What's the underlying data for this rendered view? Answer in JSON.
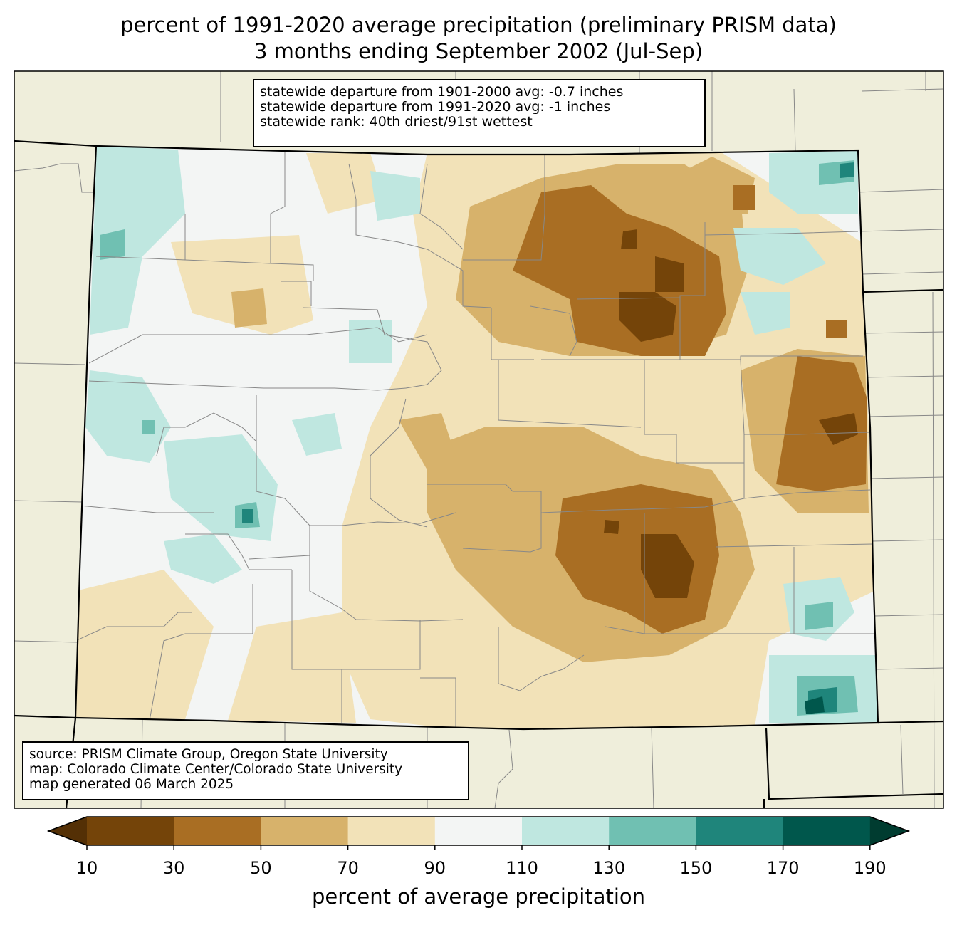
{
  "title": {
    "line1": "percent of 1991-2020 average precipitation (preliminary PRISM data)",
    "line2": "3 months ending September 2002 (Jul-Sep)"
  },
  "stats": {
    "line1": "statewide departure from 1901-2000 avg: -0.7 inches",
    "line2": "statewide departure from 1991-2020 avg: -1 inches",
    "line3": "statewide rank: 40th driest/91st wettest"
  },
  "credits": {
    "line1": "source: PRISM Climate Group, Oregon State University",
    "line2": "map: Colorado Climate Center/Colorado State University",
    "line3": "map generated 06 March 2025"
  },
  "colorbar": {
    "label": "percent of average precipitation",
    "ticks": [
      "10",
      "30",
      "50",
      "70",
      "90",
      "110",
      "130",
      "150",
      "170",
      "190"
    ],
    "under_color": "#543005",
    "over_color": "#003c30",
    "colors": [
      "#744409",
      "#a96e23",
      "#d7b26b",
      "#f2e2b8",
      "#f3f5f4",
      "#bfe7e0",
      "#70c0b2",
      "#1f857b",
      "#00574c"
    ]
  },
  "colors": {
    "background_land": "#efeedb",
    "county_lines": "#888888",
    "state_lines": "#000000"
  }
}
